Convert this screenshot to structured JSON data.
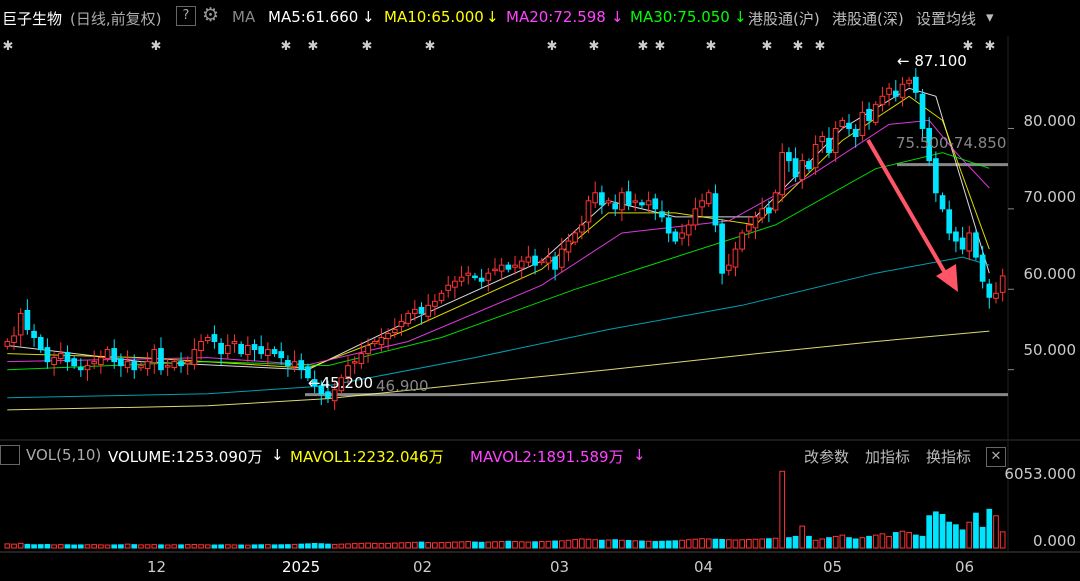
{
  "header": {
    "stock_name": "巨子生物",
    "mode": "(日线,前复权)",
    "help": "?",
    "ma_label": "MA",
    "ma5": "MA5:61.660",
    "ma10": "MA10:65.000",
    "ma20": "MA20:72.598",
    "ma30": "MA30:75.050",
    "hk_sh": "港股通(沪)",
    "hk_sz": "港股通(深)",
    "settings": "设置均线",
    "down_arrow": "↓",
    "dropdown": "▾"
  },
  "volume_header": {
    "label": "VOL(5,10)",
    "volume": "VOLUME:1253.090万",
    "mavol1": "MAVOL1:2232.046万",
    "mavol2": "MAVOL2:1891.589万",
    "change_params": "改参数",
    "add_indicator": "加指标",
    "swap_indicator": "换指标",
    "close": "✕"
  },
  "colors": {
    "up": "#ff3333",
    "down": "#00e5ff",
    "ma5": "#ffffff",
    "ma10": "#ffff00",
    "ma20": "#ff44ff",
    "ma30": "#00ff00",
    "ma60": "#00bcd4",
    "ma120": "#ffff88",
    "arrow": "#ff5566"
  },
  "chart_data": {
    "type": "candlestick",
    "y_axis_labels": [
      "80.000",
      "70.000",
      "60.000",
      "50.000"
    ],
    "y_axis_values": [
      80,
      70,
      60,
      50
    ],
    "ylim": [
      41.5,
      91.5
    ],
    "volume_axis_labels": [
      "6053.000",
      "0.000"
    ],
    "volume_ylim": [
      0,
      6053
    ],
    "x_axis_labels": [
      "12",
      "2025",
      "02",
      "03",
      "04",
      "05",
      "06"
    ],
    "annotations": {
      "high_label": "87.100",
      "low_label": "45.200",
      "low_line_label": "46.900",
      "range_label": "75.500-74.850"
    },
    "price_closes": [
      53.5,
      54.2,
      57,
      55,
      54,
      52.5,
      51,
      51.5,
      52,
      51,
      50.5,
      50,
      50.5,
      51,
      51.5,
      52.5,
      51,
      50.5,
      51,
      50,
      50.5,
      51,
      52.5,
      50,
      50.5,
      51,
      50.5,
      51,
      52.5,
      53.5,
      54,
      53.5,
      52,
      53,
      53.5,
      52,
      53,
      52.5,
      52,
      52.5,
      52,
      51.5,
      50.5,
      51,
      50,
      49,
      48,
      47,
      46.5,
      47.5,
      49,
      50.5,
      51,
      52,
      53,
      53.5,
      54,
      54.5,
      55,
      56,
      57,
      57.5,
      57,
      58,
      58.5,
      59.5,
      60.5,
      61,
      61.5,
      62,
      61.5,
      61,
      62,
      62.5,
      63,
      62.5,
      63,
      63.5,
      64,
      63,
      63.5,
      64,
      62.5,
      65,
      66,
      67,
      68,
      71,
      72,
      70.5,
      71,
      70,
      72,
      70.5,
      71,
      70.5,
      71,
      70,
      69,
      67,
      66,
      67,
      68,
      70,
      71,
      72,
      68,
      62,
      63,
      65,
      67,
      68,
      69,
      70,
      69.5,
      72,
      77,
      76,
      74,
      76,
      75,
      78,
      79,
      77,
      80,
      81,
      80,
      79,
      82,
      81,
      83,
      84,
      85,
      84,
      85.5,
      86,
      84.5,
      80,
      76,
      72,
      70,
      67,
      66,
      65,
      67,
      64,
      61,
      59,
      59.5,
      61.66
    ],
    "volumes": [
      320,
      300,
      360,
      280,
      250,
      260,
      270,
      240,
      260,
      250,
      230,
      240,
      250,
      260,
      240,
      230,
      240,
      250,
      300,
      260,
      240,
      250,
      260,
      240,
      230,
      250,
      240,
      260,
      270,
      250,
      240,
      230,
      240,
      250,
      240,
      230,
      220,
      240,
      250,
      260,
      240,
      250,
      260,
      280,
      300,
      320,
      350,
      330,
      300,
      280,
      300,
      320,
      340,
      360,
      380,
      360,
      340,
      360,
      380,
      400,
      420,
      440,
      460,
      420,
      400,
      420,
      440,
      460,
      480,
      500,
      460,
      440,
      460,
      480,
      500,
      520,
      500,
      480,
      460,
      480,
      500,
      520,
      540,
      560,
      600,
      650,
      700,
      680,
      640,
      600,
      620,
      640,
      600,
      580,
      560,
      540,
      520,
      500,
      520,
      540,
      560,
      600,
      640,
      680,
      720,
      700,
      680,
      660,
      640,
      620,
      640,
      660,
      680,
      700,
      720,
      760,
      5953,
      800,
      900,
      1700,
      900,
      600,
      700,
      800,
      900,
      1000,
      800,
      700,
      800,
      900,
      1000,
      1100,
      900,
      1200,
      1300,
      1200,
      1000,
      900,
      2500,
      2800,
      2600,
      2000,
      1800,
      1400,
      2000,
      2700,
      1600,
      3000,
      2500,
      1253.09
    ],
    "ma_lines": [
      {
        "name": "MA5",
        "key": "ma5",
        "values_at": [
          [
            0,
            53
          ],
          [
            20,
            51
          ],
          [
            45,
            50
          ],
          [
            60,
            56
          ],
          [
            80,
            63.5
          ],
          [
            90,
            71
          ],
          [
            100,
            69
          ],
          [
            112,
            69
          ],
          [
            125,
            80
          ],
          [
            135,
            85
          ],
          [
            139,
            84
          ],
          [
            147,
            62
          ]
        ]
      },
      {
        "name": "MA10",
        "key": "ma10",
        "values_at": [
          [
            0,
            52
          ],
          [
            20,
            51.5
          ],
          [
            45,
            50.2
          ],
          [
            60,
            55
          ],
          [
            80,
            62.5
          ],
          [
            90,
            69.5
          ],
          [
            100,
            69.5
          ],
          [
            112,
            68
          ],
          [
            125,
            78.5
          ],
          [
            135,
            84
          ],
          [
            140,
            81
          ],
          [
            147,
            65
          ]
        ]
      },
      {
        "name": "MA20",
        "key": "ma20",
        "values_at": [
          [
            0,
            51
          ],
          [
            30,
            51.5
          ],
          [
            45,
            50.6
          ],
          [
            60,
            53.5
          ],
          [
            80,
            60.5
          ],
          [
            92,
            67
          ],
          [
            108,
            68.5
          ],
          [
            120,
            74
          ],
          [
            132,
            80.5
          ],
          [
            138,
            81
          ],
          [
            142,
            77
          ],
          [
            147,
            72.6
          ]
        ]
      },
      {
        "name": "MA30",
        "key": "ma30",
        "values_at": [
          [
            0,
            50
          ],
          [
            30,
            51
          ],
          [
            48,
            50.5
          ],
          [
            65,
            54
          ],
          [
            85,
            60
          ],
          [
            100,
            64
          ],
          [
            115,
            68
          ],
          [
            130,
            75
          ],
          [
            140,
            77
          ],
          [
            147,
            75.05
          ]
        ]
      },
      {
        "name": "MA60",
        "key": "ma60",
        "values_at": [
          [
            0,
            46.5
          ],
          [
            30,
            47
          ],
          [
            48,
            48
          ],
          [
            70,
            51.5
          ],
          [
            90,
            55
          ],
          [
            110,
            58
          ],
          [
            130,
            62
          ],
          [
            143,
            64
          ],
          [
            147,
            63
          ]
        ]
      },
      {
        "name": "MA120",
        "key": "ma120",
        "values_at": [
          [
            0,
            45
          ],
          [
            30,
            45.5
          ],
          [
            48,
            46.4
          ],
          [
            70,
            48.3
          ],
          [
            90,
            50
          ],
          [
            110,
            51.8
          ],
          [
            130,
            53.5
          ],
          [
            147,
            54.8
          ]
        ]
      }
    ]
  }
}
